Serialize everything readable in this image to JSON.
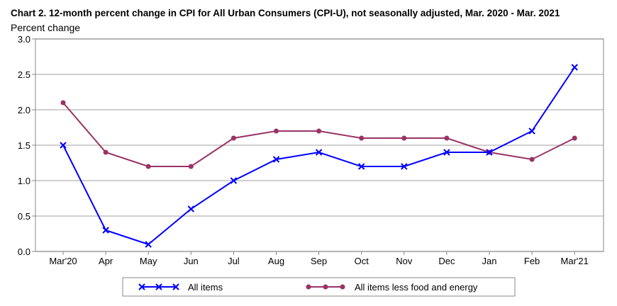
{
  "chart_data": {
    "type": "line",
    "title": "Chart 2. 12-month percent change in CPI for All Urban Consumers (CPI-U), not seasonally adjusted, Mar. 2020 - Mar. 2021",
    "ylabel": "Percent change",
    "xlabel": "",
    "ylim": [
      0,
      3.0
    ],
    "yticks": [
      "0.0",
      "0.5",
      "1.0",
      "1.5",
      "2.0",
      "2.5",
      "3.0"
    ],
    "grid": true,
    "legend_position": "bottom",
    "categories": [
      "Mar'20",
      "Apr",
      "May",
      "Jun",
      "Jul",
      "Aug",
      "Sep",
      "Oct",
      "Nov",
      "Dec",
      "Jan",
      "Feb",
      "Mar'21"
    ],
    "series": [
      {
        "name": "All items",
        "color": "#0000ff",
        "marker": "x",
        "values": [
          1.5,
          0.3,
          0.1,
          0.6,
          1.0,
          1.3,
          1.4,
          1.2,
          1.2,
          1.4,
          1.4,
          1.7,
          2.6
        ]
      },
      {
        "name": "All items less food and energy",
        "color": "#993366",
        "marker": "circle",
        "values": [
          2.1,
          1.4,
          1.2,
          1.2,
          1.6,
          1.7,
          1.7,
          1.6,
          1.6,
          1.6,
          1.4,
          1.3,
          1.6
        ]
      }
    ]
  }
}
